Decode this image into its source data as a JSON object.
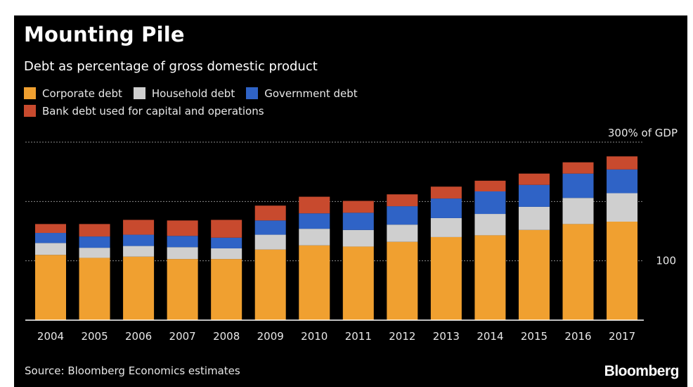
{
  "title": "Mounting Pile",
  "subtitle": "Debt as percentage of gross domestic product",
  "legend": [
    {
      "label": "Corporate debt",
      "color": "#F0A030"
    },
    {
      "label": "Household debt",
      "color": "#CFCFCF"
    },
    {
      "label": "Government debt",
      "color": "#2F63C6"
    },
    {
      "label": "Bank debt used for capital and operations",
      "color": "#C84A2E"
    }
  ],
  "source": "Source: Bloomberg Economics estimates",
  "brand": "Bloomberg",
  "colors": {
    "background": "#000000",
    "text": "#FFFFFF",
    "gridline": "#8A8A8A"
  },
  "chart_data": {
    "type": "bar",
    "stacked": true,
    "categories": [
      "2004",
      "2005",
      "2006",
      "2007",
      "2008",
      "2009",
      "2010",
      "2011",
      "2012",
      "2013",
      "2014",
      "2015",
      "2016",
      "2017"
    ],
    "series": [
      {
        "name": "Corporate debt",
        "color": "#F0A030",
        "values": [
          110,
          105,
          107,
          103,
          103,
          119,
          126,
          124,
          132,
          140,
          143,
          152,
          162,
          166
        ]
      },
      {
        "name": "Household debt",
        "color": "#CFCFCF",
        "values": [
          20,
          17,
          18,
          20,
          18,
          25,
          28,
          28,
          29,
          32,
          36,
          39,
          44,
          48
        ]
      },
      {
        "name": "Government debt",
        "color": "#2F63C6",
        "values": [
          17,
          19,
          19,
          19,
          18,
          24,
          26,
          29,
          31,
          33,
          38,
          37,
          41,
          40
        ]
      },
      {
        "name": "Bank debt used for capital and operations",
        "color": "#C84A2E",
        "values": [
          15,
          21,
          25,
          26,
          30,
          25,
          28,
          20,
          20,
          20,
          18,
          19,
          19,
          22
        ]
      }
    ],
    "ylim": [
      0,
      300
    ],
    "yticks": [
      {
        "value": 100,
        "label": "100"
      },
      {
        "value": 200,
        "label": ""
      },
      {
        "value": 300,
        "label": "300% of GDP"
      }
    ],
    "grid": true,
    "legend_position": "top-left",
    "xlabel": "",
    "ylabel": ""
  }
}
